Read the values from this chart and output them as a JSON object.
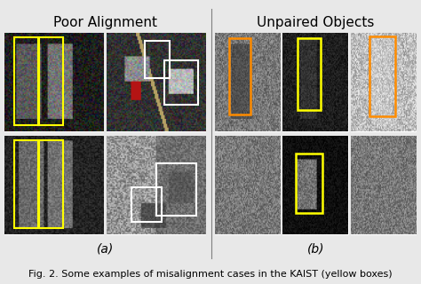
{
  "title_left": "Poor Alignment",
  "title_right": "Unpaired Objects",
  "label_a": "(a)",
  "label_b": "(b)",
  "caption": "Fig. 2. Some examples of misalignment cases in the KAIST (yellow boxes)",
  "background_color": "#e8e8e8",
  "title_fontsize": 11,
  "label_fontsize": 10,
  "caption_fontsize": 8,
  "yellow": "#ffff00",
  "white": "#ffffff",
  "orange": "#ff8c00"
}
